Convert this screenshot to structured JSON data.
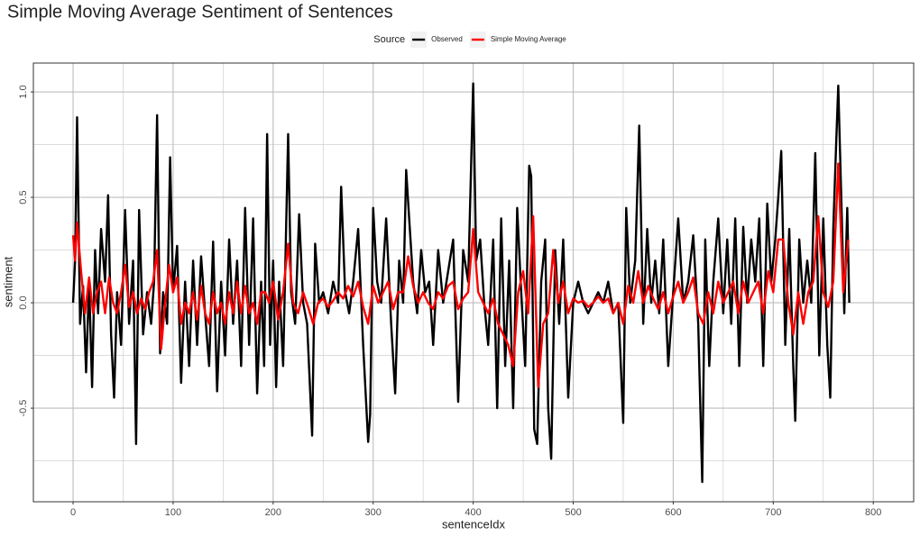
{
  "chart_data": {
    "type": "line",
    "title": "Simple Moving Average Sentiment of Sentences",
    "x_label": "sentenceIdx",
    "y_label": "sentiment",
    "legend_title": "Source",
    "legend_position": "top",
    "grid": true,
    "xlim": [
      -39.7,
      840.4
    ],
    "ylim": [
      -0.944,
      1.137
    ],
    "xticks": [
      0,
      100,
      200,
      300,
      400,
      500,
      600,
      700,
      800
    ],
    "minor_xticks": [
      50,
      150,
      250,
      350,
      450,
      550,
      650,
      750
    ],
    "yticks": [
      {
        "value": -0.5,
        "label": "-0.5"
      },
      {
        "value": 0,
        "label": "0.0"
      },
      {
        "value": 0.5,
        "label": "0.5"
      },
      {
        "value": 1,
        "label": "1.0"
      }
    ],
    "minor_yticks": [
      -0.75,
      -0.25,
      0.25,
      0.75
    ],
    "series": [
      {
        "name": "Observed",
        "color": "#000000",
        "x": [
          0,
          2,
          4,
          7,
          10,
          13,
          16,
          19,
          22,
          25,
          28,
          32,
          35,
          38,
          41,
          44,
          48,
          52,
          56,
          60,
          63,
          66,
          70,
          74,
          78,
          81,
          84,
          87,
          90,
          94,
          97,
          100,
          104,
          108,
          112,
          116,
          120,
          124,
          128,
          132,
          136,
          140,
          144,
          148,
          152,
          156,
          160,
          164,
          168,
          172,
          176,
          180,
          184,
          188,
          191,
          194,
          197,
          200,
          203,
          206,
          210,
          215,
          218,
          222,
          226,
          230,
          234,
          239,
          242,
          246,
          250,
          255,
          260,
          265,
          268,
          272,
          276,
          280,
          285,
          290,
          295,
          297,
          300,
          304,
          308,
          313,
          318,
          322,
          326,
          330,
          333,
          336,
          340,
          344,
          348,
          352,
          356,
          360,
          365,
          370,
          375,
          380,
          385,
          390,
          395,
          400,
          403,
          407,
          411,
          415,
          420,
          424,
          428,
          432,
          436,
          440,
          444,
          448,
          452,
          456,
          458,
          461,
          464,
          468,
          472,
          475,
          478,
          482,
          486,
          490,
          495,
          500,
          505,
          510,
          515,
          520,
          525,
          530,
          535,
          540,
          545,
          550,
          553,
          557,
          562,
          566,
          570,
          574,
          578,
          582,
          586,
          590,
          595,
          600,
          605,
          610,
          615,
          620,
          625,
          629,
          632,
          636,
          640,
          645,
          650,
          654,
          658,
          662,
          666,
          670,
          674,
          678,
          682,
          686,
          690,
          694,
          698,
          702,
          705,
          708,
          712,
          716,
          720,
          722,
          726,
          730,
          734,
          738,
          742,
          746,
          750,
          754,
          757,
          760,
          763,
          765,
          768,
          771,
          774,
          776
        ],
        "values": [
          0,
          0.2,
          0.88,
          -0.1,
          0.08,
          -0.33,
          0.1,
          -0.4,
          0.25,
          -0.05,
          0.35,
          0.1,
          0.51,
          -0.15,
          -0.45,
          0.05,
          -0.2,
          0.44,
          -0.1,
          0.2,
          -0.67,
          0.44,
          -0.15,
          0.05,
          -0.1,
          0.1,
          0.89,
          -0.24,
          0.05,
          -0.1,
          0.69,
          0.05,
          0.27,
          -0.38,
          0.1,
          -0.3,
          0.2,
          -0.2,
          0.22,
          -0.05,
          -0.3,
          0.29,
          -0.42,
          0.1,
          -0.25,
          0.3,
          -0.1,
          0.2,
          -0.3,
          0.45,
          -0.2,
          0.4,
          -0.43,
          0.1,
          -0.3,
          0.8,
          -0.2,
          0.2,
          -0.4,
          0.1,
          -0.3,
          0.8,
          0.05,
          -0.1,
          0.42,
          0,
          -0.1,
          -0.63,
          0.28,
          0,
          0.05,
          -0.05,
          0.1,
          0,
          0.55,
          0.05,
          -0.05,
          0.1,
          0.35,
          -0.2,
          -0.66,
          -0.53,
          0.45,
          0.1,
          0,
          0.4,
          -0.1,
          -0.43,
          0.2,
          0,
          0.63,
          0.4,
          0.1,
          -0.05,
          0.25,
          0.05,
          0.1,
          -0.2,
          0.25,
          0,
          0.15,
          0.3,
          -0.47,
          0.25,
          0.1,
          1.04,
          0.2,
          0.3,
          0,
          -0.2,
          0.3,
          -0.5,
          0.4,
          -0.3,
          0.2,
          -0.5,
          0.45,
          0.05,
          -0.3,
          0.65,
          0.6,
          -0.6,
          -0.67,
          0.1,
          0.3,
          -0.5,
          -0.74,
          0.25,
          -0.1,
          0.3,
          -0.45,
          0,
          0.1,
          0,
          -0.05,
          0,
          0.05,
          0,
          0.1,
          -0.05,
          0,
          -0.57,
          0.45,
          0,
          0.2,
          0.84,
          -0.1,
          0.35,
          0,
          0.2,
          -0.05,
          0.3,
          -0.3,
          0.05,
          0.4,
          0,
          0.1,
          0.32,
          -0.1,
          -0.85,
          0.3,
          -0.3,
          0.1,
          0.4,
          -0.05,
          0.3,
          -0.1,
          0.4,
          -0.3,
          0.36,
          0,
          0.3,
          0.1,
          0.4,
          -0.3,
          0.47,
          0.1,
          0.3,
          0.5,
          0.72,
          -0.2,
          0.35,
          -0.3,
          -0.56,
          0.3,
          0,
          0.2,
          0,
          0.71,
          -0.25,
          0.4,
          -0.2,
          -0.45,
          0.35,
          0.77,
          1.03,
          0.5,
          -0.05,
          0.45,
          0
        ]
      },
      {
        "name": "Simple Moving Average",
        "color": "#ff0000",
        "x": [
          0,
          2,
          4,
          8,
          12,
          16,
          20,
          24,
          28,
          32,
          36,
          40,
          44,
          48,
          52,
          56,
          60,
          64,
          68,
          72,
          76,
          80,
          84,
          88,
          92,
          96,
          100,
          104,
          108,
          112,
          116,
          120,
          124,
          128,
          132,
          136,
          140,
          144,
          148,
          152,
          156,
          160,
          164,
          168,
          172,
          176,
          180,
          184,
          188,
          192,
          196,
          200,
          205,
          210,
          215,
          220,
          225,
          230,
          235,
          240,
          245,
          250,
          255,
          260,
          265,
          270,
          275,
          280,
          285,
          290,
          295,
          300,
          305,
          310,
          315,
          320,
          325,
          330,
          335,
          340,
          345,
          350,
          355,
          360,
          365,
          370,
          375,
          380,
          385,
          390,
          395,
          400,
          405,
          410,
          415,
          420,
          425,
          430,
          435,
          440,
          445,
          450,
          455,
          460,
          465,
          470,
          475,
          480,
          485,
          490,
          495,
          500,
          505,
          510,
          515,
          520,
          525,
          530,
          535,
          540,
          545,
          550,
          555,
          560,
          565,
          570,
          575,
          580,
          585,
          590,
          595,
          600,
          605,
          610,
          615,
          620,
          625,
          630,
          635,
          640,
          645,
          650,
          655,
          660,
          665,
          670,
          675,
          680,
          685,
          690,
          695,
          700,
          705,
          710,
          715,
          720,
          725,
          730,
          735,
          740,
          745,
          750,
          755,
          760,
          765,
          770,
          775
        ],
        "values": [
          0.32,
          0.2,
          0.38,
          0.15,
          -0.05,
          0.12,
          -0.05,
          0.05,
          0.1,
          -0.05,
          0.12,
          0,
          -0.05,
          0.05,
          0.18,
          -0.02,
          0.05,
          -0.05,
          0.02,
          -0.03,
          0.05,
          0.1,
          0.25,
          -0.22,
          0,
          0.18,
          0.05,
          0.12,
          -0.1,
          0,
          -0.05,
          0.05,
          -0.08,
          0.08,
          -0.05,
          -0.1,
          0.05,
          -0.05,
          0,
          -0.1,
          0.05,
          -0.05,
          0.1,
          -0.05,
          0.08,
          -0.05,
          0,
          -0.1,
          0.05,
          0.05,
          0,
          0.1,
          -0.08,
          0.05,
          0.28,
          0,
          -0.05,
          0.05,
          -0.02,
          -0.1,
          0,
          0.02,
          -0.02,
          0.01,
          0.05,
          0.02,
          0.08,
          0.03,
          0.1,
          -0.02,
          -0.1,
          0.08,
          0,
          0.05,
          0.1,
          -0.03,
          0.05,
          0.05,
          0.22,
          0.08,
          0,
          0.05,
          0,
          -0.03,
          0.05,
          0.02,
          0.08,
          0.1,
          -0.03,
          0.02,
          0.05,
          0.35,
          0.05,
          0,
          -0.05,
          0.02,
          -0.1,
          -0.15,
          -0.2,
          -0.3,
          0.05,
          0.15,
          -0.05,
          0.41,
          -0.4,
          -0.1,
          -0.05,
          0.25,
          0,
          0.1,
          -0.05,
          0.02,
          0,
          0.01,
          -0.02,
          0,
          0.03,
          0,
          0.02,
          -0.05,
          0,
          -0.1,
          0.08,
          0,
          0.15,
          0,
          0.08,
          0.02,
          -0.03,
          0.05,
          -0.05,
          0.03,
          0.1,
          0,
          0.05,
          0.12,
          -0.05,
          -0.1,
          0.05,
          -0.05,
          0.1,
          0,
          0.05,
          0.1,
          -0.05,
          0.1,
          0,
          0.05,
          0.1,
          -0.05,
          0.15,
          0.05,
          0.3,
          0.3,
          0,
          -0.15,
          0.05,
          -0.1,
          0.05,
          0.1,
          0.41,
          0.05,
          -0.02,
          0.1,
          0.66,
          0.05,
          0.3
        ]
      }
    ]
  }
}
